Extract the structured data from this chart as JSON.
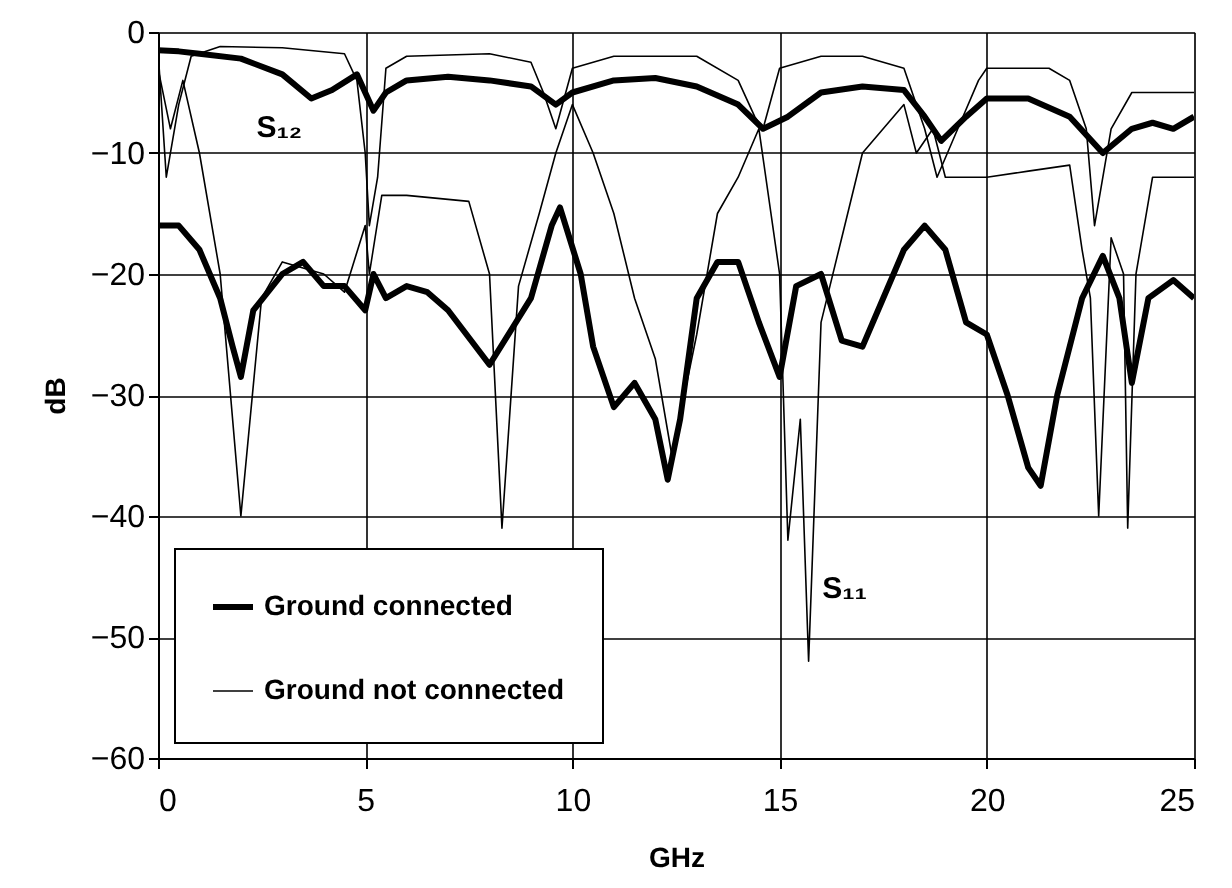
{
  "chart_data": {
    "type": "line",
    "xlabel": "GHz",
    "ylabel": "dB",
    "xlim": [
      0,
      25
    ],
    "xticks": [
      0,
      5,
      10,
      15,
      20,
      25
    ],
    "ylim": [
      -60,
      0
    ],
    "yticks": [
      -60,
      -50,
      -40,
      -30,
      -20,
      -10,
      0
    ],
    "grid": true,
    "legend": "bottom left",
    "line_style": "solid",
    "marker": "none",
    "annotations": [
      "S₁₂",
      "S₁₁"
    ],
    "series": [
      {
        "name": "Ground connected",
        "color": "#000000",
        "x": [
          0,
          0.5,
          1,
          2,
          3,
          3.7,
          4.2,
          4.8,
          5.2,
          5.5,
          6,
          7,
          8,
          9,
          9.6,
          10,
          11,
          12,
          13,
          14,
          14.6,
          15.2,
          16,
          17,
          18,
          18.5,
          18.9,
          19.5,
          20,
          21,
          22,
          22.8,
          23.5,
          24,
          24.5,
          25
        ],
        "values": [
          -1.5,
          -1.6,
          -1.8,
          -2.2,
          -3.5,
          -5.5,
          -4.8,
          -3.5,
          -6.5,
          -5,
          -4,
          -3.7,
          -4,
          -4.5,
          -6,
          -5,
          -4,
          -3.8,
          -4.5,
          -6,
          -8,
          -7,
          -5,
          -4.5,
          -4.8,
          -7,
          -9,
          -7,
          -5.5,
          -5.5,
          -7,
          -10,
          -8,
          -7.5,
          -8,
          -7
        ]
      },
      {
        "name": "Ground not connected",
        "color": "#000000",
        "x": [
          0,
          0.2,
          0.5,
          0.8,
          1.5,
          3,
          4.5,
          4.8,
          5.0,
          5.1,
          5.3,
          5.5,
          6,
          8,
          9,
          9.3,
          9.6,
          10,
          11,
          13,
          14,
          14.4,
          14.6,
          15,
          16,
          17,
          18,
          18.5,
          18.8,
          19.3,
          19.8,
          20,
          21.5,
          22,
          22.4,
          22.6,
          23,
          23.5,
          24,
          25
        ],
        "values": [
          -1.5,
          -12,
          -6,
          -2,
          -1.2,
          -1.3,
          -1.8,
          -4,
          -10,
          -16,
          -12,
          -3,
          -2,
          -1.8,
          -2.5,
          -5,
          -8,
          -3,
          -2,
          -2,
          -4,
          -7,
          -8,
          -3,
          -2,
          -2,
          -3,
          -8,
          -12,
          -8,
          -4,
          -3,
          -3,
          -4,
          -8,
          -16,
          -8,
          -5,
          -5,
          -5
        ]
      },
      {
        "color": "#000000",
        "x": [
          0,
          0.5,
          1,
          1.5,
          1.8,
          2,
          2.3,
          3,
          3.5,
          4,
          4.5,
          5,
          5.2,
          5.5,
          6,
          6.5,
          7,
          8,
          9,
          9.5,
          9.7,
          10.2,
          10.5,
          11,
          11.5,
          12,
          12.3,
          12.6,
          13,
          13.5,
          14,
          14.5,
          15,
          15.4,
          16,
          16.5,
          17,
          17.5,
          18,
          18.5,
          19,
          19.5,
          20,
          20.5,
          21,
          21.3,
          21.7,
          22.3,
          22.8,
          23.2,
          23.5,
          23.9,
          24.5,
          25
        ],
        "values": [
          -16,
          -16,
          -18,
          -22,
          -26,
          -28.5,
          -23,
          -20,
          -19,
          -21,
          -21,
          -23,
          -20,
          -22,
          -21,
          -21.5,
          -23,
          -27.5,
          -22,
          -16,
          -14.5,
          -20,
          -26,
          -31,
          -29,
          -32,
          -37,
          -32,
          -22,
          -19,
          -19,
          -24,
          -28.5,
          -21,
          -20,
          -25.5,
          -26,
          -22,
          -18,
          -16,
          -18,
          -24,
          -25,
          -30,
          -36,
          -37.5,
          -30,
          -22,
          -18.5,
          -22,
          -29,
          -22,
          -20.5,
          -22
        ]
      },
      {
        "color": "#000000",
        "x": [
          0,
          0.3,
          0.6,
          1,
          1.5,
          2,
          2.5,
          3,
          4,
          4.5,
          5,
          5.1,
          5.4,
          6,
          7.5,
          8,
          8.3,
          8.7,
          9.2,
          9.6,
          10,
          10.5,
          11,
          11.5,
          12,
          12.4,
          13,
          13.5,
          14,
          14.5,
          15,
          15.2,
          15.5,
          15.7,
          16,
          16.5,
          17,
          17.5,
          18,
          18.3,
          18.7,
          19,
          19.5,
          20,
          21,
          22,
          22.3,
          22.5,
          22.7,
          23,
          23.3,
          23.4,
          23.6,
          24,
          25
        ],
        "values": [
          -3,
          -8,
          -4,
          -10,
          -20,
          -40,
          -22,
          -19,
          -20,
          -21.5,
          -16,
          -20,
          -13.5,
          -13.5,
          -14,
          -20,
          -41,
          -21,
          -15,
          -10,
          -6,
          -10,
          -15,
          -22,
          -27,
          -35,
          -25,
          -15,
          -12,
          -8,
          -20,
          -42,
          -32,
          -52,
          -24,
          -17,
          -10,
          -8,
          -6,
          -10,
          -8,
          -12,
          -12,
          -12,
          -11.5,
          -11,
          -18,
          -22,
          -40,
          -17,
          -20,
          -41,
          -20,
          -12,
          -12
        ]
      }
    ]
  }
}
